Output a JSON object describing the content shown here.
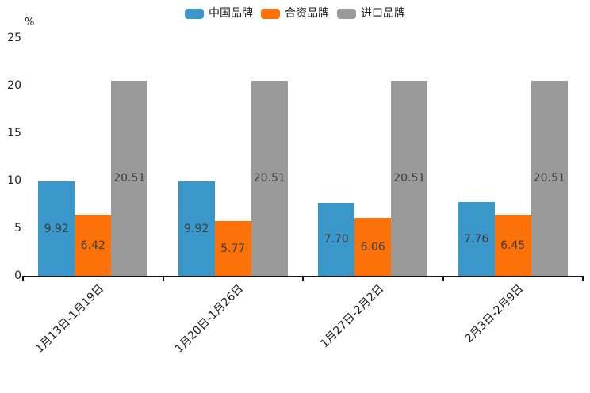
{
  "chart_data": {
    "type": "bar",
    "title": "",
    "unit_label": "%",
    "categories": [
      "1月13日-1月19日",
      "1月20日-1月26日",
      "1月27日-2月2日",
      "2月3日-2月9日"
    ],
    "series": [
      {
        "name": "中国品牌",
        "color": "#3997CA",
        "values": [
          9.92,
          9.92,
          7.7,
          7.76
        ]
      },
      {
        "name": "合资品牌",
        "color": "#FC7208",
        "values": [
          6.42,
          5.77,
          6.06,
          6.45
        ]
      },
      {
        "name": "进口品牌",
        "color": "#9A9A9A",
        "values": [
          20.51,
          20.51,
          20.51,
          20.51
        ]
      }
    ],
    "ylim": [
      0,
      25
    ],
    "yticks": [
      0,
      5,
      10,
      15,
      20,
      25
    ],
    "xlabel": "",
    "ylabel": "%",
    "grid": false,
    "legend_position": "top-center",
    "legend_marker": "rounded-rect",
    "value_labels": "inside-center",
    "value_label_decimals": 2,
    "value_label_color": "#3c3c3c",
    "axis_color": "#111111",
    "x_label_rotation_deg": 45
  }
}
